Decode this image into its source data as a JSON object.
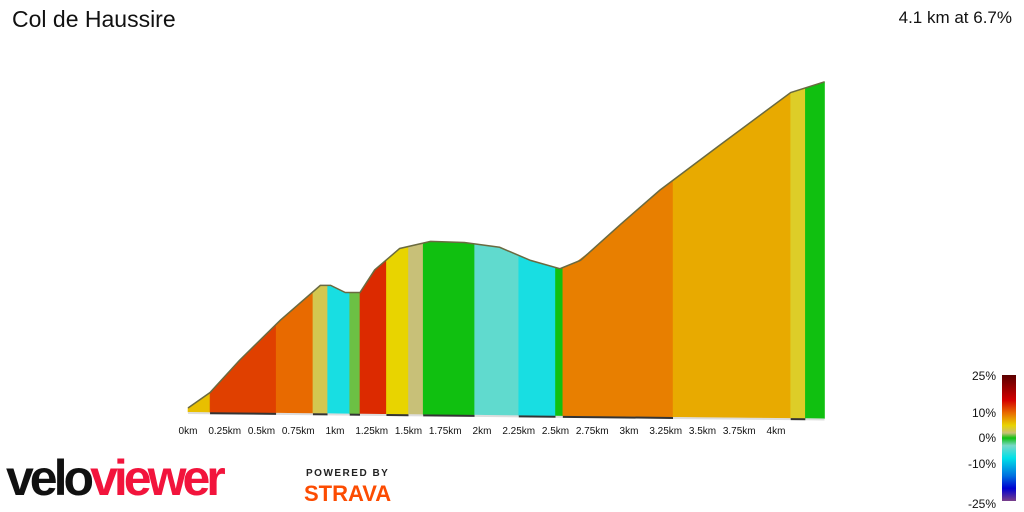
{
  "header": {
    "title": "Col de Haussire",
    "summary": "4.1 km at 6.7%"
  },
  "chart_data": {
    "type": "area",
    "title": "Col de Haussire",
    "xlabel": "",
    "ylabel": "",
    "x_unit": "km",
    "xlim": [
      0,
      4.33
    ],
    "x_ticks": [
      "0km",
      "0.25km",
      "0.5km",
      "0.75km",
      "1km",
      "1.25km",
      "1.5km",
      "1.75km",
      "2km",
      "2.25km",
      "2.5km",
      "2.75km",
      "3km",
      "3.25km",
      "3.5km",
      "3.75km",
      "4km"
    ],
    "profile": [
      {
        "km": 0,
        "elev": 0
      },
      {
        "km": 0.15,
        "elev": 13
      },
      {
        "km": 0.35,
        "elev": 40
      },
      {
        "km": 0.63,
        "elev": 74
      },
      {
        "km": 0.9,
        "elev": 103
      },
      {
        "km": 0.97,
        "elev": 103
      },
      {
        "km": 1.07,
        "elev": 97
      },
      {
        "km": 1.17,
        "elev": 97
      },
      {
        "km": 1.27,
        "elev": 116
      },
      {
        "km": 1.44,
        "elev": 134
      },
      {
        "km": 1.65,
        "elev": 140
      },
      {
        "km": 1.88,
        "elev": 139
      },
      {
        "km": 2.12,
        "elev": 135
      },
      {
        "km": 2.33,
        "elev": 124
      },
      {
        "km": 2.53,
        "elev": 117
      },
      {
        "km": 2.67,
        "elev": 124
      },
      {
        "km": 2.94,
        "elev": 154
      },
      {
        "km": 3.21,
        "elev": 183
      },
      {
        "km": 3.62,
        "elev": 221
      },
      {
        "km": 4.1,
        "elev": 265
      },
      {
        "km": 4.33,
        "elev": 274
      }
    ],
    "gradient_segments": [
      {
        "from": 0,
        "to": 0.15,
        "gradient": 6
      },
      {
        "from": 0.15,
        "to": 0.6,
        "gradient": 12
      },
      {
        "from": 0.6,
        "to": 0.85,
        "gradient": 10
      },
      {
        "from": 0.85,
        "to": 0.95,
        "gradient": 3
      },
      {
        "from": 0.95,
        "to": 1.1,
        "gradient": -7
      },
      {
        "from": 1.1,
        "to": 1.17,
        "gradient": 1
      },
      {
        "from": 1.17,
        "to": 1.35,
        "gradient": 13
      },
      {
        "from": 1.35,
        "to": 1.5,
        "gradient": 5
      },
      {
        "from": 1.5,
        "to": 1.6,
        "gradient": 2
      },
      {
        "from": 1.6,
        "to": 1.95,
        "gradient": 0
      },
      {
        "from": 1.95,
        "to": 2.25,
        "gradient": -4
      },
      {
        "from": 2.25,
        "to": 2.5,
        "gradient": -7
      },
      {
        "from": 2.5,
        "to": 2.55,
        "gradient": 0
      },
      {
        "from": 2.55,
        "to": 3.3,
        "gradient": 9
      },
      {
        "from": 3.3,
        "to": 4.1,
        "gradient": 7
      },
      {
        "from": 4.1,
        "to": 4.2,
        "gradient": 4
      },
      {
        "from": 4.2,
        "to": 4.33,
        "gradient": 0
      }
    ],
    "legend": {
      "position": "bottom-right",
      "labels": [
        "25%",
        "10%",
        "0%",
        "-10%",
        "-25%"
      ],
      "stops": [
        {
          "g": 25,
          "color": "#5a0000"
        },
        {
          "g": 15,
          "color": "#d40000"
        },
        {
          "g": 10,
          "color": "#e86a00"
        },
        {
          "g": 5,
          "color": "#e8d400"
        },
        {
          "g": 2,
          "color": "#c8c078"
        },
        {
          "g": 0,
          "color": "#10c010"
        },
        {
          "g": -3,
          "color": "#78d8c8"
        },
        {
          "g": -8,
          "color": "#00e0e8"
        },
        {
          "g": -15,
          "color": "#0070e0"
        },
        {
          "g": -20,
          "color": "#0000d0"
        },
        {
          "g": -25,
          "color": "#7a3f8a"
        }
      ]
    }
  },
  "branding": {
    "logo_part1": "velo",
    "logo_part2": "viewer",
    "powered_by": "POWERED BY",
    "strava": "STRAVA"
  }
}
